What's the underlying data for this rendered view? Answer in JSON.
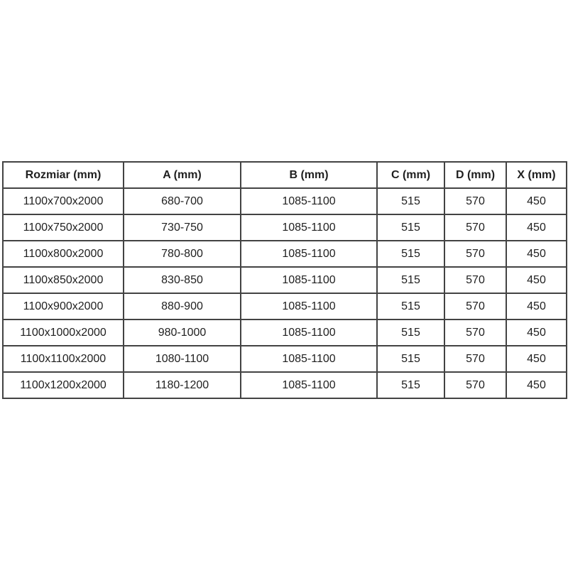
{
  "chart_data": {
    "type": "table",
    "columns": [
      "Rozmiar (mm)",
      "A (mm)",
      "B (mm)",
      "C (mm)",
      "D (mm)",
      "X (mm)"
    ],
    "rows": [
      [
        "1100x700x2000",
        "680-700",
        "1085-1100",
        "515",
        "570",
        "450"
      ],
      [
        "1100x750x2000",
        "730-750",
        "1085-1100",
        "515",
        "570",
        "450"
      ],
      [
        "1100x800x2000",
        "780-800",
        "1085-1100",
        "515",
        "570",
        "450"
      ],
      [
        "1100x850x2000",
        "830-850",
        "1085-1100",
        "515",
        "570",
        "450"
      ],
      [
        "1100x900x2000",
        "880-900",
        "1085-1100",
        "515",
        "570",
        "450"
      ],
      [
        "1100x1000x2000",
        "980-1000",
        "1085-1100",
        "515",
        "570",
        "450"
      ],
      [
        "1100x1100x2000",
        "1080-1100",
        "1085-1100",
        "515",
        "570",
        "450"
      ],
      [
        "1100x1200x2000",
        "1180-1200",
        "1085-1100",
        "515",
        "570",
        "450"
      ]
    ]
  },
  "colors": {
    "table_border": "#434343",
    "text": "#1f1f1f",
    "background": "#ffffff"
  }
}
